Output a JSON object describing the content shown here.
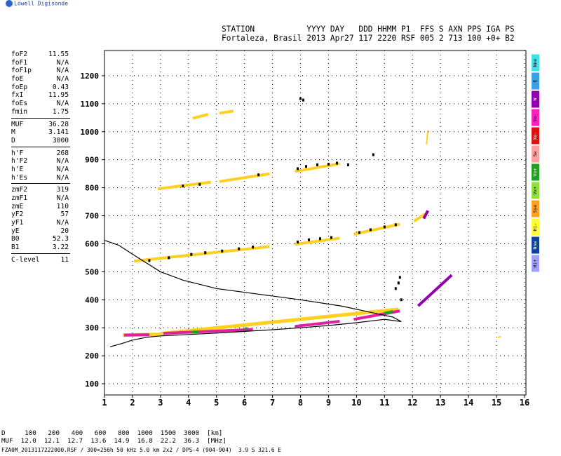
{
  "logo": {
    "text": "Lowell Digisonde"
  },
  "header": {
    "line1": "STATION           YYYY DAY   DDD HHMM P1  FFS S AXN PPS IGA PS",
    "line2": "Fortaleza, Brasil 2013 Apr27 117 2220 RSF 005 2 713 100 +0+ B2"
  },
  "params": {
    "group1": [
      {
        "k": "foF2",
        "v": "11.55"
      },
      {
        "k": "foF1",
        "v": "N/A"
      },
      {
        "k": "foF1p",
        "v": "N/A"
      },
      {
        "k": "foE",
        "v": "N/A"
      },
      {
        "k": "foEp",
        "v": "0.43"
      },
      {
        "k": "fxI",
        "v": "11.95"
      },
      {
        "k": "foEs",
        "v": "N/A"
      },
      {
        "k": "fmin",
        "v": "1.75"
      }
    ],
    "group2": [
      {
        "k": "MUF",
        "v": "36.28"
      },
      {
        "k": "M",
        "v": "3.141"
      },
      {
        "k": "D",
        "v": "3000"
      }
    ],
    "group3": [
      {
        "k": "h'F",
        "v": "268"
      },
      {
        "k": "h'F2",
        "v": "N/A"
      },
      {
        "k": "h'E",
        "v": "N/A"
      },
      {
        "k": "h'Es",
        "v": "N/A"
      }
    ],
    "group4": [
      {
        "k": "zmF2",
        "v": "319"
      },
      {
        "k": "zmF1",
        "v": "N/A"
      },
      {
        "k": "zmE",
        "v": "110"
      },
      {
        "k": "yF2",
        "v": "57"
      },
      {
        "k": "yF1",
        "v": "N/A"
      },
      {
        "k": "yE",
        "v": "20"
      },
      {
        "k": "B0",
        "v": "52.3"
      },
      {
        "k": "B1",
        "v": "3.22"
      }
    ],
    "group5": [
      {
        "k": "C-level",
        "v": "11"
      }
    ]
  },
  "legend": [
    {
      "label": "Nne",
      "color": "#40e0e8"
    },
    {
      "label": "E",
      "color": "#3aa0e8"
    },
    {
      "label": "W",
      "color": "#9000b0"
    },
    {
      "label": "Vo-",
      "color": "#ff20c0"
    },
    {
      "label": "Xo-",
      "color": "#e01010"
    },
    {
      "label": "Sw",
      "color": "#ffa0a0"
    },
    {
      "label": "Vo+",
      "color": "#20a020"
    },
    {
      "label": "Vx+",
      "color": "#90e040"
    },
    {
      "label": "Sse",
      "color": "#ffa020"
    },
    {
      "label": "Hi-",
      "color": "#ffff30"
    },
    {
      "label": "Nnw",
      "color": "#1040a0"
    },
    {
      "label": "Hi+",
      "color": "#a0a0ff"
    }
  ],
  "muf_table": {
    "d_line": "D     100   200   400   600   800  1000  1500  3000  [km]",
    "m_line": "MUF  12.0  12.1  12.7  13.6  14.9  16.8  22.2  36.3  [MHz]"
  },
  "footer": "FZA0M_2013117222000.RSF / 300×256h 50 kHz 5.0 km 2x2 / DPS-4 (904-904)  3.9 S 321.6 E",
  "chart_data": {
    "type": "scatter",
    "x_ticks": [
      1,
      2,
      3,
      4,
      5,
      6,
      7,
      8,
      9,
      10,
      11,
      12,
      13,
      14,
      15,
      16
    ],
    "y_ticks": [
      100,
      200,
      300,
      400,
      500,
      600,
      700,
      800,
      900,
      1000,
      1100,
      1200
    ],
    "xlim": [
      1,
      16.05
    ],
    "ylim": [
      60,
      1290
    ],
    "grid": true,
    "series": [
      {
        "color": "#ffd020",
        "segments": [
          [
            1.65,
            274,
            3.0,
            276
          ],
          [
            3.0,
            279,
            11.5,
            366
          ]
        ],
        "width": 5
      },
      {
        "color": "#e020a0",
        "segments": [
          [
            1.7,
            274,
            2.6,
            275
          ],
          [
            3.1,
            280,
            6.3,
            294
          ],
          [
            7.8,
            305,
            9.4,
            323
          ],
          [
            9.9,
            330,
            11.55,
            360
          ]
        ],
        "width": 4
      },
      {
        "color": "#20a020",
        "segments": [
          [
            4.1,
            284,
            4.35,
            285
          ],
          [
            6.0,
            296,
            6.1,
            297
          ],
          [
            11.0,
            352,
            11.3,
            358
          ]
        ],
        "width": 4
      },
      {
        "color": "#ffd020",
        "segments": [
          [
            2.05,
            538,
            6.9,
            590
          ],
          [
            7.8,
            598,
            9.4,
            620
          ],
          [
            2.9,
            796,
            4.8,
            820
          ],
          [
            5.1,
            822,
            6.9,
            850
          ],
          [
            7.8,
            858,
            9.4,
            886
          ],
          [
            4.15,
            1048,
            4.7,
            1062
          ],
          [
            5.1,
            1066,
            5.6,
            1074
          ],
          [
            9.9,
            634,
            11.55,
            670
          ],
          [
            12.05,
            680,
            12.45,
            706
          ]
        ],
        "width": 4
      },
      {
        "color": "#9000b0",
        "segments": [
          [
            12.2,
            378,
            13.4,
            488
          ],
          [
            12.4,
            690,
            12.55,
            718
          ]
        ],
        "width": 4
      },
      {
        "color": "#ffd020",
        "segments": [
          [
            12.5,
            955,
            12.55,
            1005
          ],
          [
            15.05,
            265,
            15.15,
            269
          ]
        ],
        "width": 2
      }
    ],
    "black_points": [
      [
        2.6,
        540
      ],
      [
        3.3,
        550
      ],
      [
        4.1,
        562
      ],
      [
        4.6,
        568
      ],
      [
        5.2,
        574
      ],
      [
        5.8,
        582
      ],
      [
        6.3,
        588
      ],
      [
        7.9,
        606
      ],
      [
        8.3,
        614
      ],
      [
        8.7,
        618
      ],
      [
        9.1,
        622
      ],
      [
        3.8,
        806
      ],
      [
        4.4,
        812
      ],
      [
        6.5,
        846
      ],
      [
        7.9,
        868
      ],
      [
        8.2,
        876
      ],
      [
        8.6,
        882
      ],
      [
        9.0,
        884
      ],
      [
        9.3,
        888
      ],
      [
        8.0,
        1118
      ],
      [
        8.1,
        1113
      ],
      [
        10.1,
        640
      ],
      [
        10.5,
        650
      ],
      [
        11.0,
        660
      ],
      [
        11.4,
        668
      ],
      [
        11.4,
        440
      ],
      [
        11.5,
        460
      ],
      [
        11.55,
        480
      ],
      [
        11.6,
        400
      ],
      [
        10.6,
        918
      ],
      [
        9.7,
        882
      ]
    ],
    "curve": {
      "points": [
        [
          1.2,
          232
        ],
        [
          1.6,
          243
        ],
        [
          2.0,
          256
        ],
        [
          2.5,
          266
        ],
        [
          3.0,
          271
        ],
        [
          4.0,
          276
        ],
        [
          5.0,
          281
        ],
        [
          6.0,
          287
        ],
        [
          7.0,
          293
        ],
        [
          8.0,
          300
        ],
        [
          9.0,
          308
        ],
        [
          10.0,
          318
        ],
        [
          11.0,
          330
        ],
        [
          11.6,
          322
        ],
        [
          11.3,
          338
        ],
        [
          10.5,
          355
        ],
        [
          9.5,
          377
        ],
        [
          8.0,
          400
        ],
        [
          6.5,
          420
        ],
        [
          5.0,
          440
        ],
        [
          3.8,
          470
        ],
        [
          3.0,
          500
        ],
        [
          2.2,
          550
        ],
        [
          1.5,
          595
        ],
        [
          1.0,
          612
        ]
      ]
    }
  }
}
